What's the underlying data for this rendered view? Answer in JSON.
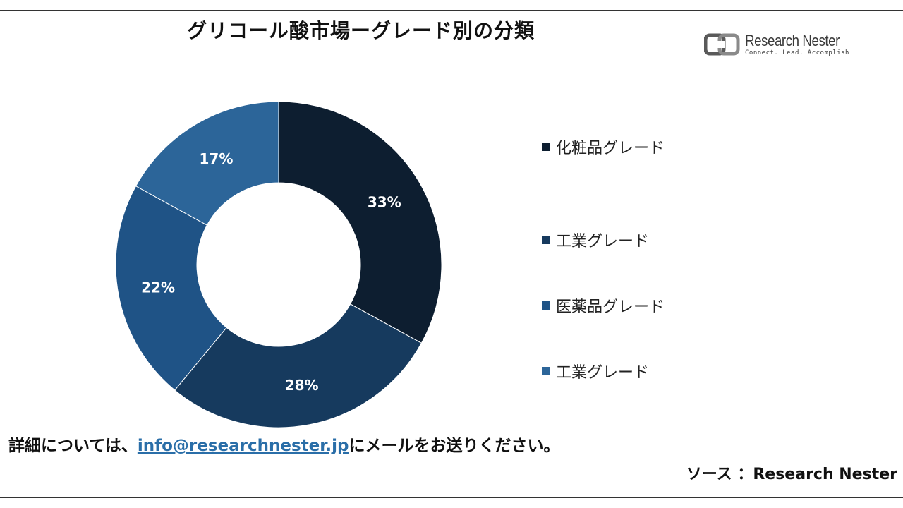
{
  "title": "グリコール酸市場ーグレード別の分類",
  "logo": {
    "name": "Research Nester",
    "tagline": "Connect. Lead. Accomplish"
  },
  "chart_data": {
    "type": "pie",
    "donut": true,
    "start_angle_deg": 0,
    "direction": "clockwise",
    "categories": [
      "化粧品グレード",
      "工業グレード",
      "医薬品グレード",
      "工業グレード"
    ],
    "values": [
      33,
      28,
      22,
      17
    ],
    "value_labels": [
      "33%",
      "28%",
      "22%",
      "17%"
    ],
    "colors": [
      "#0d1e30",
      "#163a5e",
      "#1f5386",
      "#2c6599"
    ],
    "legend_position": "right"
  },
  "footer": {
    "prefix": "詳細については、",
    "email": "info@researchnester.jp",
    "suffix": "にメールをお送りください。"
  },
  "source": "ソース ：Research Nester"
}
